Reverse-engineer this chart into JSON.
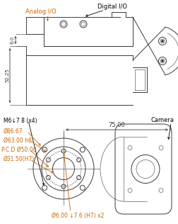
{
  "bg_color": "#ffffff",
  "line_color": "#3a3a3a",
  "dim_color": "#3a3a3a",
  "label_color": "#cc6600",
  "black": "#000000",
  "top_labels": {
    "digital": "Digital I/O",
    "analog": "Analog I/O"
  },
  "top_dims": {
    "d1": "6.0",
    "d2": "52.25"
  },
  "bottom_labels": {
    "m6": "M6↓7 8 (x4)",
    "d86": "Ø86.67",
    "d63": "Ø63.00 h8",
    "pcd": "P.C.D Ø50.00",
    "d31": "Ø31.50(H7)",
    "d6": "Ø6.00 ↓7 6 (H7) x2",
    "d75": "75.00",
    "camera": "Camera"
  }
}
